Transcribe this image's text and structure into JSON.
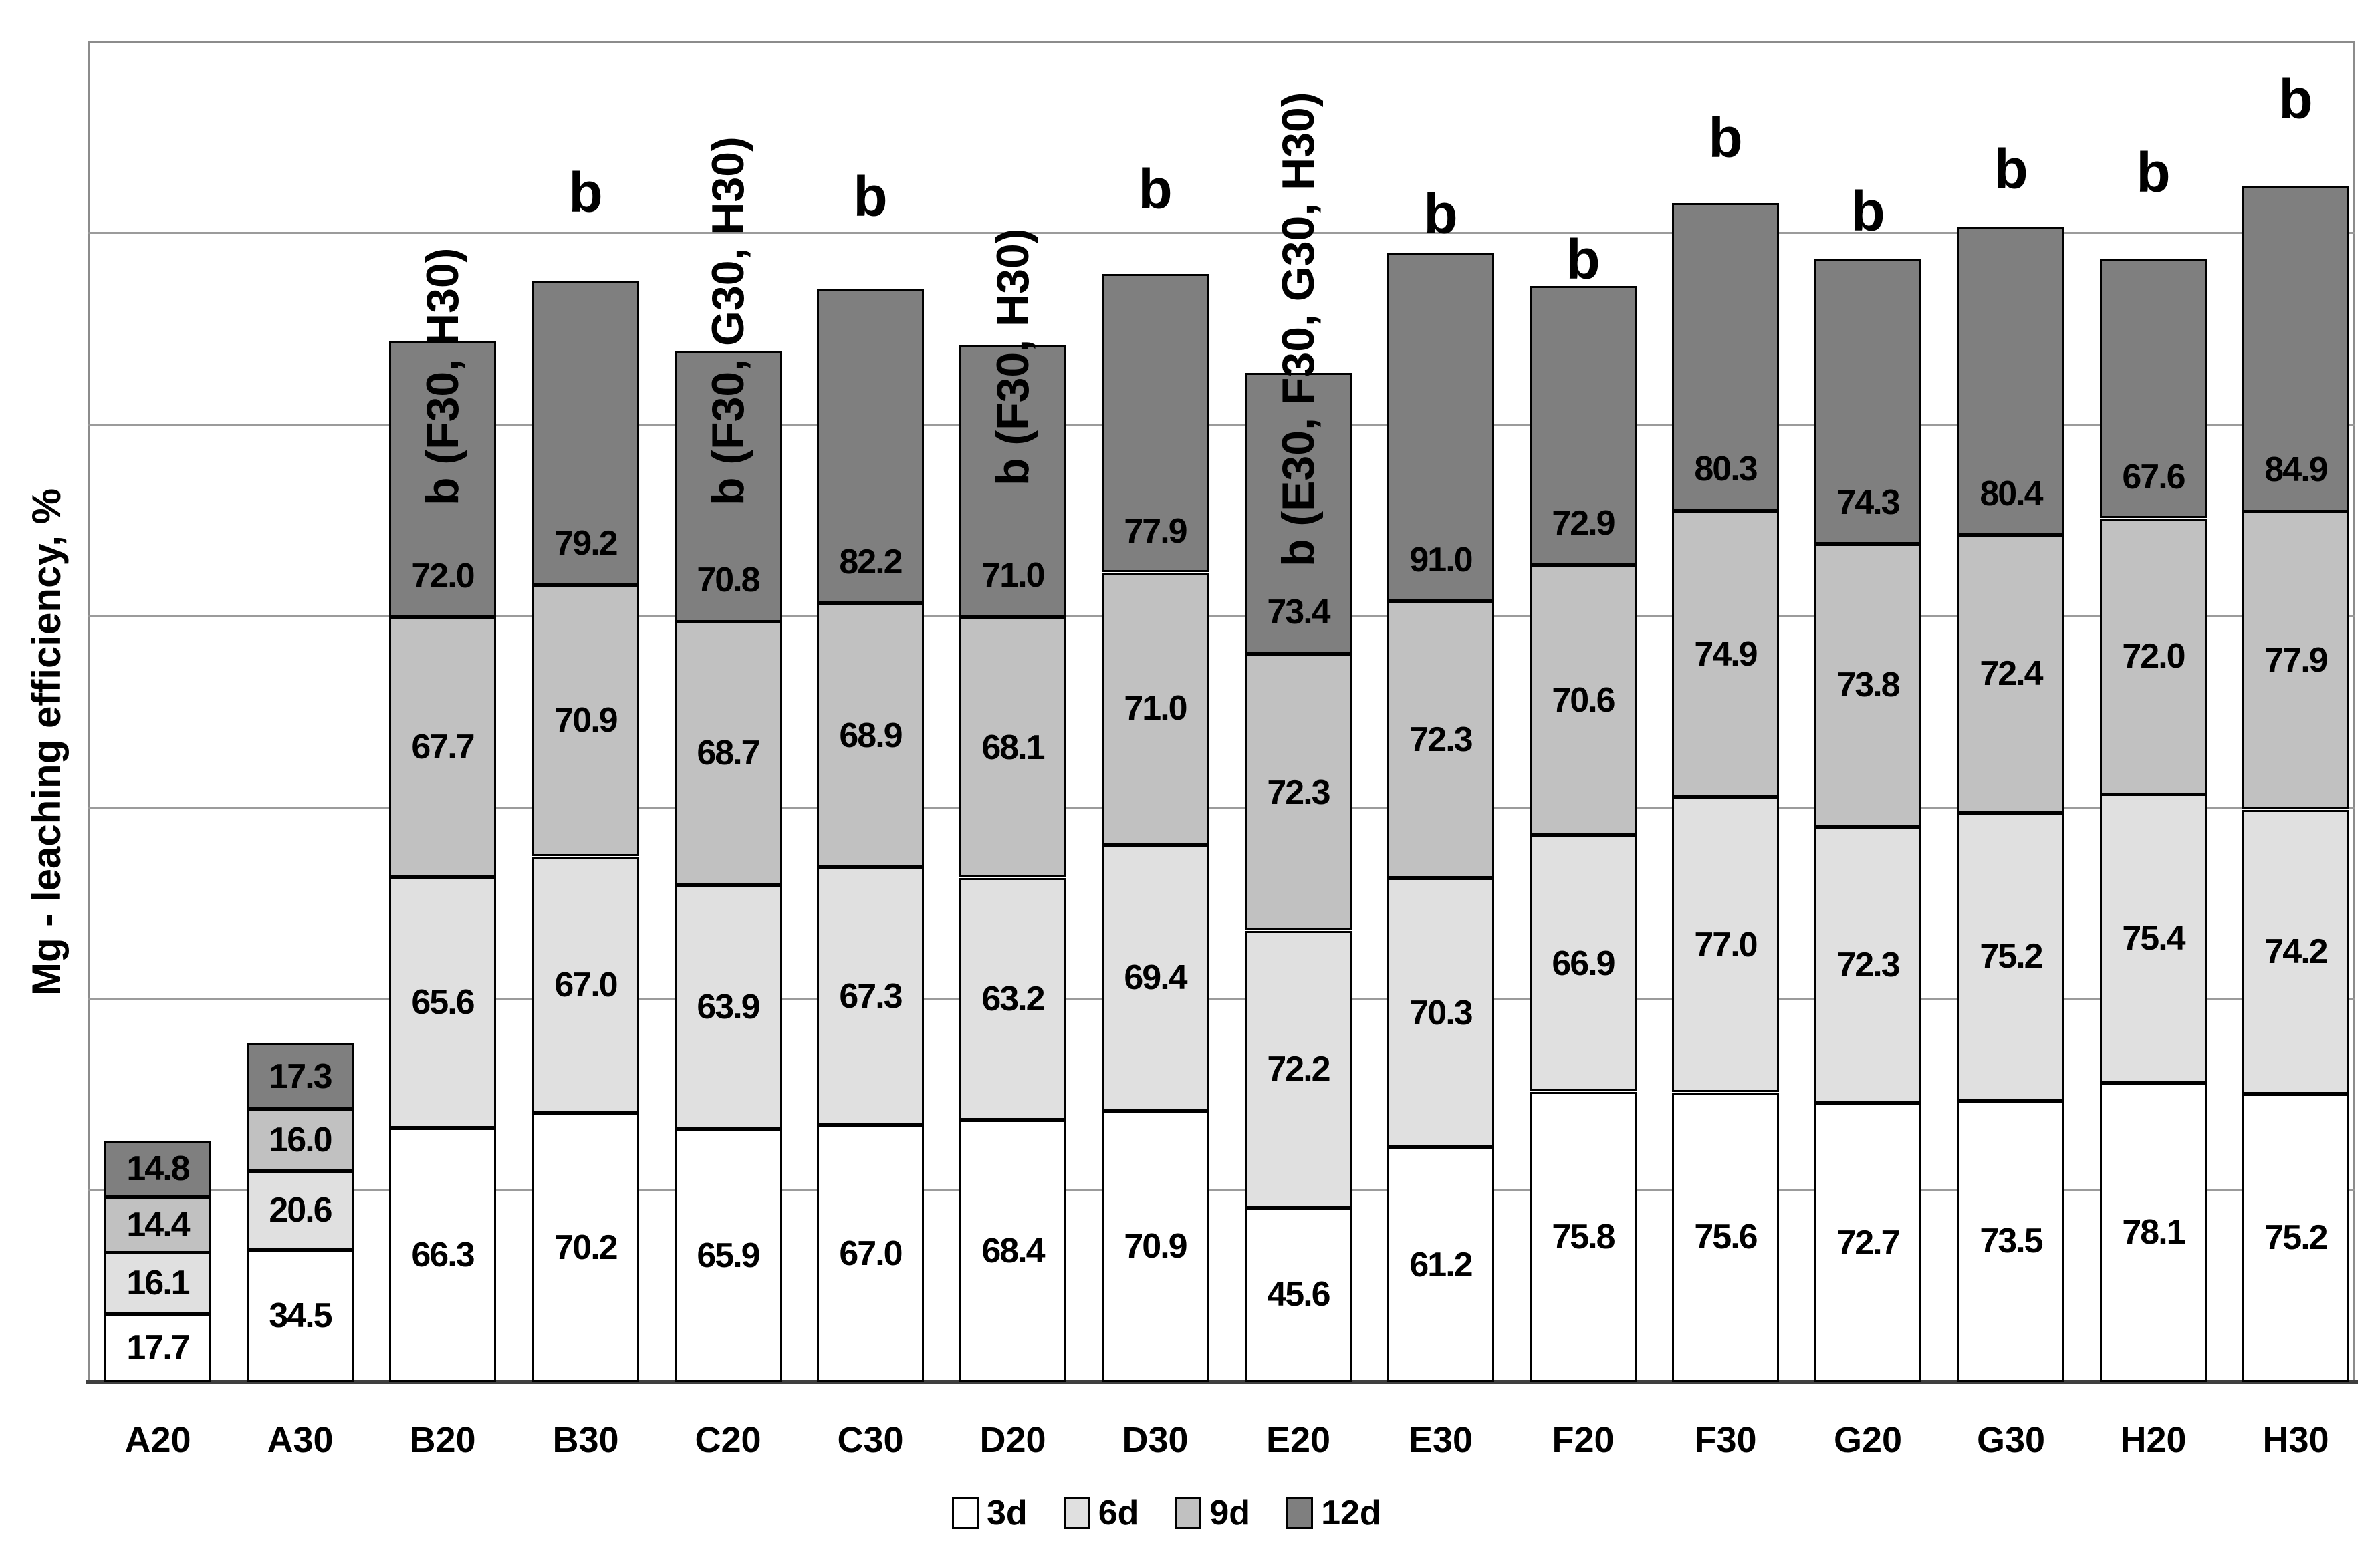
{
  "chart_data": {
    "type": "bar",
    "stacked": true,
    "title": "",
    "xlabel": "",
    "ylabel": "Mg - leaching efficiency, %",
    "ylim": [
      0,
      350
    ],
    "gridline_step": 50,
    "grid": true,
    "y_tick_labels_visible": false,
    "legend_position": "bottom",
    "categories": [
      "A20",
      "A30",
      "B20",
      "B30",
      "C20",
      "C30",
      "D20",
      "D30",
      "E20",
      "E30",
      "F20",
      "F30",
      "G20",
      "G30",
      "H20",
      "H30"
    ],
    "series": [
      {
        "name": "3d",
        "color": "#ffffff",
        "values": [
          17.7,
          34.5,
          66.3,
          70.2,
          65.9,
          67.0,
          68.4,
          70.9,
          45.6,
          61.2,
          75.8,
          75.6,
          72.7,
          73.5,
          78.1,
          75.2
        ]
      },
      {
        "name": "6d",
        "color": "#e0e0e0",
        "values": [
          16.1,
          20.6,
          65.6,
          67.0,
          63.9,
          67.3,
          63.2,
          69.4,
          72.2,
          70.3,
          66.9,
          77.0,
          72.3,
          75.2,
          75.4,
          74.2
        ]
      },
      {
        "name": "9d",
        "color": "#c1c1c1",
        "values": [
          14.4,
          16.0,
          67.7,
          70.9,
          68.7,
          68.9,
          68.1,
          71.0,
          72.3,
          72.3,
          70.6,
          74.9,
          73.8,
          72.4,
          72.0,
          77.9
        ]
      },
      {
        "name": "12d",
        "color": "#7f7f7f",
        "values": [
          14.8,
          17.3,
          72.0,
          79.2,
          70.8,
          82.2,
          71.0,
          77.9,
          73.4,
          91.0,
          72.9,
          80.3,
          74.3,
          80.4,
          67.6,
          84.9
        ]
      }
    ],
    "bar_annotations": [
      {
        "category": "B20",
        "text": "b (F30, H30)",
        "rotated": true,
        "bottom_y": 756
      },
      {
        "category": "B30",
        "text": "b",
        "rotated": false,
        "bottom_y": 330
      },
      {
        "category": "C20",
        "text": "b (F30, G30, H30)",
        "rotated": true,
        "bottom_y": 756
      },
      {
        "category": "C30",
        "text": "b",
        "rotated": false,
        "bottom_y": 336
      },
      {
        "category": "D20",
        "text": "b (F30, H30)",
        "rotated": true,
        "bottom_y": 727
      },
      {
        "category": "D30",
        "text": "b",
        "rotated": false,
        "bottom_y": 325
      },
      {
        "category": "E20",
        "text": "b (E30, F30, G30, H30)",
        "rotated": true,
        "bottom_y": 848
      },
      {
        "category": "E30",
        "text": "b",
        "rotated": false,
        "bottom_y": 362
      },
      {
        "category": "F20",
        "text": "b",
        "rotated": false,
        "bottom_y": 430
      },
      {
        "category": "F30",
        "text": "b",
        "rotated": false,
        "bottom_y": 248
      },
      {
        "category": "G20",
        "text": "b",
        "rotated": false,
        "bottom_y": 358
      },
      {
        "category": "G30",
        "text": "b",
        "rotated": false,
        "bottom_y": 295
      },
      {
        "category": "H20",
        "text": "b",
        "rotated": false,
        "bottom_y": 300
      },
      {
        "category": "H30",
        "text": "b",
        "rotated": false,
        "bottom_y": 190
      }
    ]
  }
}
